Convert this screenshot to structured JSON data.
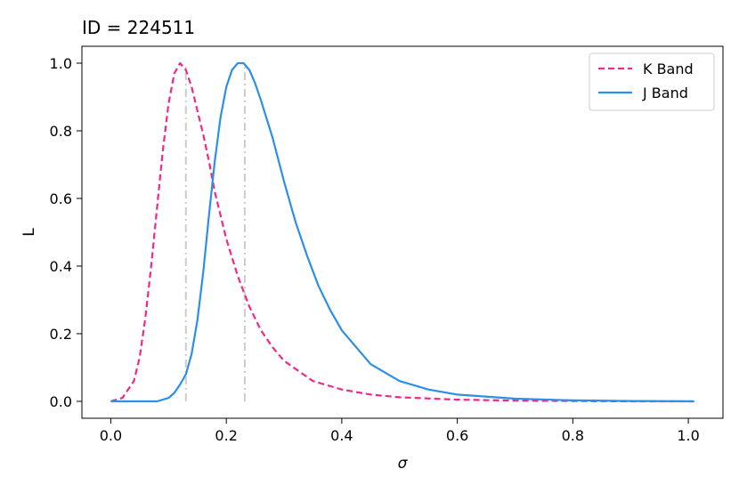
{
  "chart_data": {
    "type": "line",
    "title": "ID = 224511",
    "xlabel": "σ",
    "ylabel": "L",
    "xlim": [
      -0.05,
      1.06
    ],
    "ylim": [
      -0.05,
      1.05
    ],
    "xticks": [
      0.0,
      0.2,
      0.4,
      0.6,
      0.8,
      1.0
    ],
    "xtick_labels": [
      "0.0",
      "0.2",
      "0.4",
      "0.6",
      "0.8",
      "1.0"
    ],
    "yticks": [
      0.0,
      0.2,
      0.4,
      0.6,
      0.8,
      1.0
    ],
    "ytick_labels": [
      "0.0",
      "0.2",
      "0.4",
      "0.6",
      "0.8",
      "1.0"
    ],
    "grid": false,
    "legend_position": "top-right",
    "series": [
      {
        "name": "K Band",
        "style": "dashed",
        "color": "#f0288c",
        "x": [
          0.0,
          0.02,
          0.04,
          0.05,
          0.06,
          0.07,
          0.08,
          0.09,
          0.1,
          0.11,
          0.12,
          0.13,
          0.14,
          0.15,
          0.16,
          0.17,
          0.18,
          0.2,
          0.22,
          0.24,
          0.26,
          0.28,
          0.3,
          0.35,
          0.4,
          0.45,
          0.5,
          0.6,
          0.7,
          0.8,
          0.9,
          1.01
        ],
        "y": [
          0.0,
          0.01,
          0.06,
          0.13,
          0.25,
          0.4,
          0.57,
          0.74,
          0.88,
          0.97,
          1.0,
          0.98,
          0.93,
          0.86,
          0.79,
          0.71,
          0.62,
          0.48,
          0.37,
          0.28,
          0.21,
          0.16,
          0.12,
          0.06,
          0.035,
          0.02,
          0.012,
          0.005,
          0.002,
          0.001,
          0.0,
          0.0
        ]
      },
      {
        "name": "J Band",
        "style": "solid",
        "color": "#2c8fe8",
        "x": [
          0.0,
          0.05,
          0.08,
          0.1,
          0.11,
          0.12,
          0.13,
          0.14,
          0.15,
          0.16,
          0.17,
          0.18,
          0.19,
          0.2,
          0.21,
          0.22,
          0.23,
          0.24,
          0.25,
          0.26,
          0.28,
          0.3,
          0.32,
          0.34,
          0.36,
          0.38,
          0.4,
          0.45,
          0.5,
          0.55,
          0.6,
          0.7,
          0.8,
          0.9,
          1.01
        ],
        "y": [
          0.0,
          0.0,
          0.0,
          0.01,
          0.025,
          0.05,
          0.08,
          0.14,
          0.24,
          0.38,
          0.55,
          0.71,
          0.84,
          0.93,
          0.98,
          1.0,
          1.0,
          0.98,
          0.94,
          0.89,
          0.78,
          0.65,
          0.53,
          0.43,
          0.34,
          0.27,
          0.21,
          0.11,
          0.06,
          0.035,
          0.02,
          0.008,
          0.003,
          0.001,
          0.0
        ]
      }
    ],
    "annotations": [
      {
        "type": "vline",
        "x": 0.13,
        "y0": 0.0,
        "y1": 1.0,
        "color": "#cccccc",
        "style": "dashdot"
      },
      {
        "type": "vline",
        "x": 0.232,
        "y0": 0.0,
        "y1": 1.0,
        "color": "#cccccc",
        "style": "dashdot"
      }
    ]
  }
}
